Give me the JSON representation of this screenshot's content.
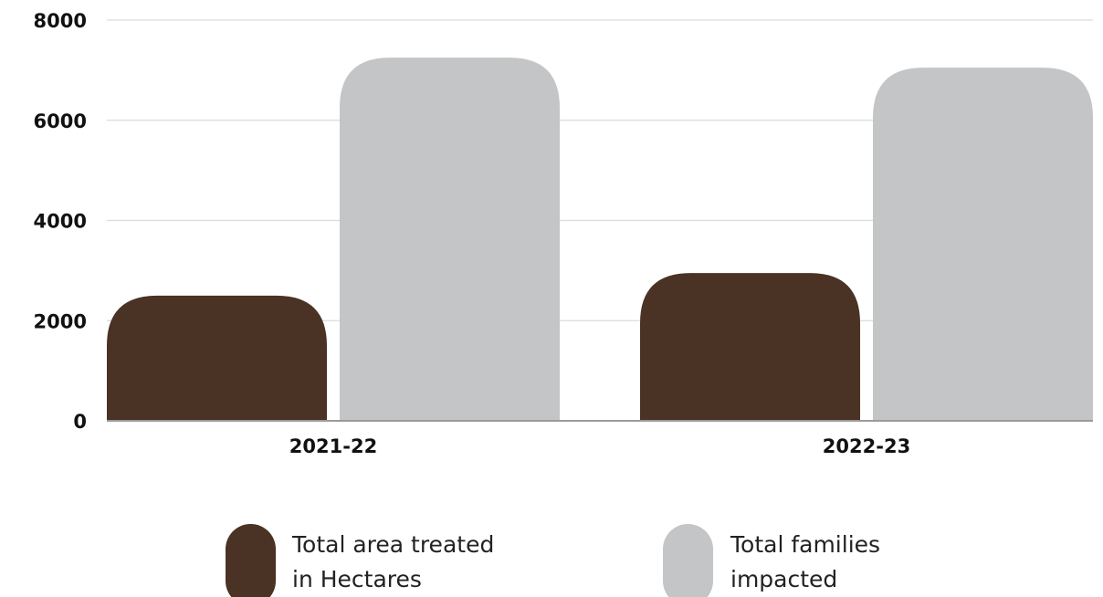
{
  "chart_data": {
    "type": "bar",
    "categories": [
      "2021-22",
      "2022-23"
    ],
    "series": [
      {
        "name": "Total area treated in Hectares",
        "legend_lines": [
          "Total area treated",
          "in Hectares"
        ],
        "color": "#4a3224",
        "values": [
          2500,
          2950
        ]
      },
      {
        "name": "Total families impacted",
        "legend_lines": [
          "Total families",
          "impacted"
        ],
        "color": "#c4c5c7",
        "values": [
          7250,
          7050
        ]
      }
    ],
    "yticks": [
      0,
      2000,
      4000,
      6000,
      8000
    ],
    "ylim": [
      0,
      8000
    ],
    "grid": true,
    "legend_position": "bottom"
  }
}
